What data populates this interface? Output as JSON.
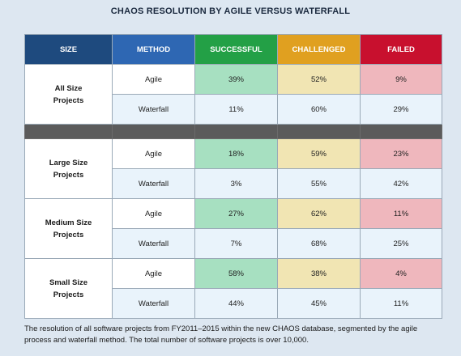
{
  "title": "CHAOS RESOLUTION BY AGILE VERSUS WATERFALL",
  "headers": {
    "size": "SIZE",
    "method": "METHOD",
    "successful": "SUCCESSFUL",
    "challenged": "CHALLENGED",
    "failed": "FAILED"
  },
  "colors": {
    "size_header": "#1e4a7e",
    "method_header": "#2e67b3",
    "successful": "#23a046",
    "challenged": "#e0a020",
    "failed": "#c8102e"
  },
  "groups": [
    {
      "label_line1": "All Size",
      "label_line2": "Projects",
      "agile": {
        "method": "Agile",
        "successful": "39%",
        "challenged": "52%",
        "failed": "9%"
      },
      "waterfall": {
        "method": "Waterfall",
        "successful": "11%",
        "challenged": "60%",
        "failed": "29%"
      }
    },
    {
      "label_line1": "Large Size",
      "label_line2": "Projects",
      "agile": {
        "method": "Agile",
        "successful": "18%",
        "challenged": "59%",
        "failed": "23%"
      },
      "waterfall": {
        "method": "Waterfall",
        "successful": "3%",
        "challenged": "55%",
        "failed": "42%"
      }
    },
    {
      "label_line1": "Medium Size",
      "label_line2": "Projects",
      "agile": {
        "method": "Agile",
        "successful": "27%",
        "challenged": "62%",
        "failed": "11%"
      },
      "waterfall": {
        "method": "Waterfall",
        "successful": "7%",
        "challenged": "68%",
        "failed": "25%"
      }
    },
    {
      "label_line1": "Small Size",
      "label_line2": "Projects",
      "agile": {
        "method": "Agile",
        "successful": "58%",
        "challenged": "38%",
        "failed": "4%"
      },
      "waterfall": {
        "method": "Waterfall",
        "successful": "44%",
        "challenged": "45%",
        "failed": "11%"
      }
    }
  ],
  "caption": "The resolution of all software projects from FY2011–2015 within the new CHAOS database, segmented by the agile process and waterfall method. The total number of software projects is over 10,000."
}
